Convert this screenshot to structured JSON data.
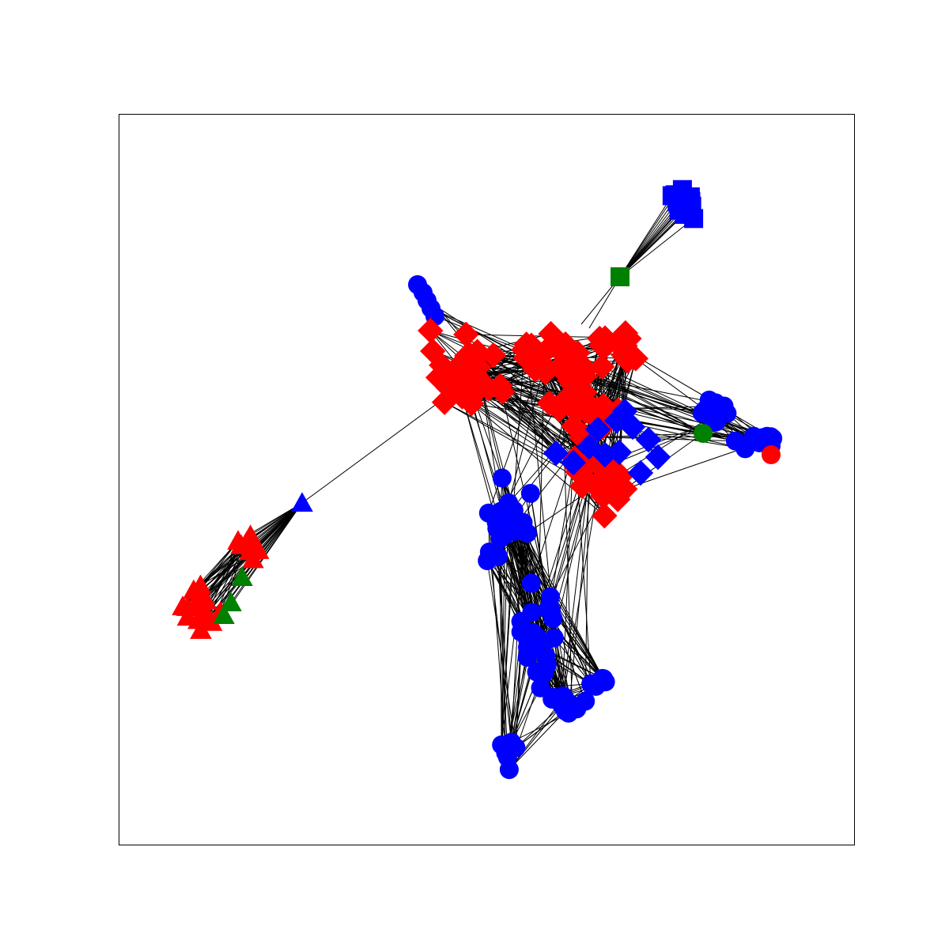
{
  "figure": {
    "background": "#ffffff",
    "frame_color": "#000000",
    "edge_color": "#000000"
  },
  "colors": {
    "red": "#ff0000",
    "blue": "#0000ff",
    "green": "#008000"
  },
  "legend": "none",
  "clusters": [
    {
      "name": "blue-square-cluster",
      "shape": "square",
      "color": "blue",
      "count": 14
    },
    {
      "name": "green-square-hub",
      "shape": "square",
      "color": "green",
      "count": 1
    },
    {
      "name": "blue-circle-stub",
      "shape": "circle",
      "color": "blue",
      "count": 5
    },
    {
      "name": "red-diamond-cluster",
      "shape": "diamond",
      "color": "red",
      "count": 120
    },
    {
      "name": "blue-diamond-nodes",
      "shape": "diamond",
      "color": "blue",
      "count": 12
    },
    {
      "name": "blue-circle-east",
      "shape": "circle",
      "color": "blue",
      "count": 20
    },
    {
      "name": "green-circle-east",
      "shape": "circle",
      "color": "green",
      "count": 1
    },
    {
      "name": "red-circle-east",
      "shape": "circle",
      "color": "red",
      "count": 1
    },
    {
      "name": "blue-circle-south",
      "shape": "circle",
      "color": "blue",
      "count": 70
    },
    {
      "name": "red-triangle-cluster",
      "shape": "triangle",
      "color": "red",
      "count": 28
    },
    {
      "name": "blue-triangle-hub",
      "shape": "triangle",
      "color": "blue",
      "count": 1
    },
    {
      "name": "green-triangle-nodes",
      "shape": "triangle",
      "color": "green",
      "count": 3
    }
  ]
}
